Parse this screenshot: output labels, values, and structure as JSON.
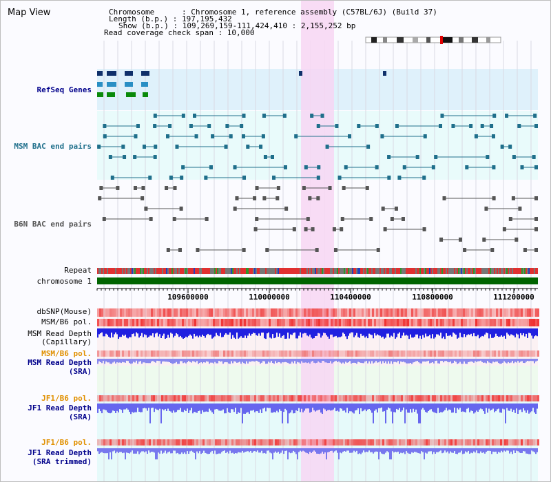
{
  "title": "Map View",
  "info": [
    "Chromosome      : Chromosome 1, reference assembly (C57BL/6J) (Build 37)",
    "Length (b.p.) : 197,195,432",
    "Show (b.p.) : 109,269,159-111,424,410 : 2,155,252 bp",
    "Read coverage check span : 10,000"
  ],
  "tracks": {
    "refseq": "RefSeq Genes",
    "msm_bac": "MSM BAC end pairs",
    "b6n_bac": "B6N BAC end pairs",
    "repeat": "Repeat",
    "chromosome": "chromosome 1",
    "dbsnp": "dbSNP(Mouse)",
    "msm_b6_pol": "MSM/B6 pol.",
    "msm_depth_cap": "MSM Read Depth",
    "msm_depth_cap_sub": "(Capillary)",
    "msm_b6_pol2": "MSM/B6 pol.",
    "msm_depth_sra": "MSM Read Depth",
    "msm_depth_sra_sub": "(SRA)",
    "jf1_b6_pol": "JF1/B6 pol.",
    "jf1_depth_sra": "JF1 Read Depth",
    "jf1_depth_sra_sub": "(SRA)",
    "jf1_b6_pol2": "JF1/B6 pol.",
    "jf1_depth_trim": "JF1 Read Depth",
    "jf1_depth_trim_sub": "(SRA trimmed)"
  },
  "axis_ticks": [
    "109600000",
    "110000000",
    "110400000",
    "110800000",
    "111200000"
  ],
  "colors": {
    "refseq": "#00008b",
    "msm_bac": "#1f6f8b",
    "b6n_bac": "#555555",
    "msm_b6_pol2": "#e09000",
    "msm_depth_sra": "#00008b",
    "jf1": "#e09000",
    "jf1_depth": "#00008b",
    "highlight": "#f7d6f3",
    "chromosome_bar": "#006400"
  }
}
